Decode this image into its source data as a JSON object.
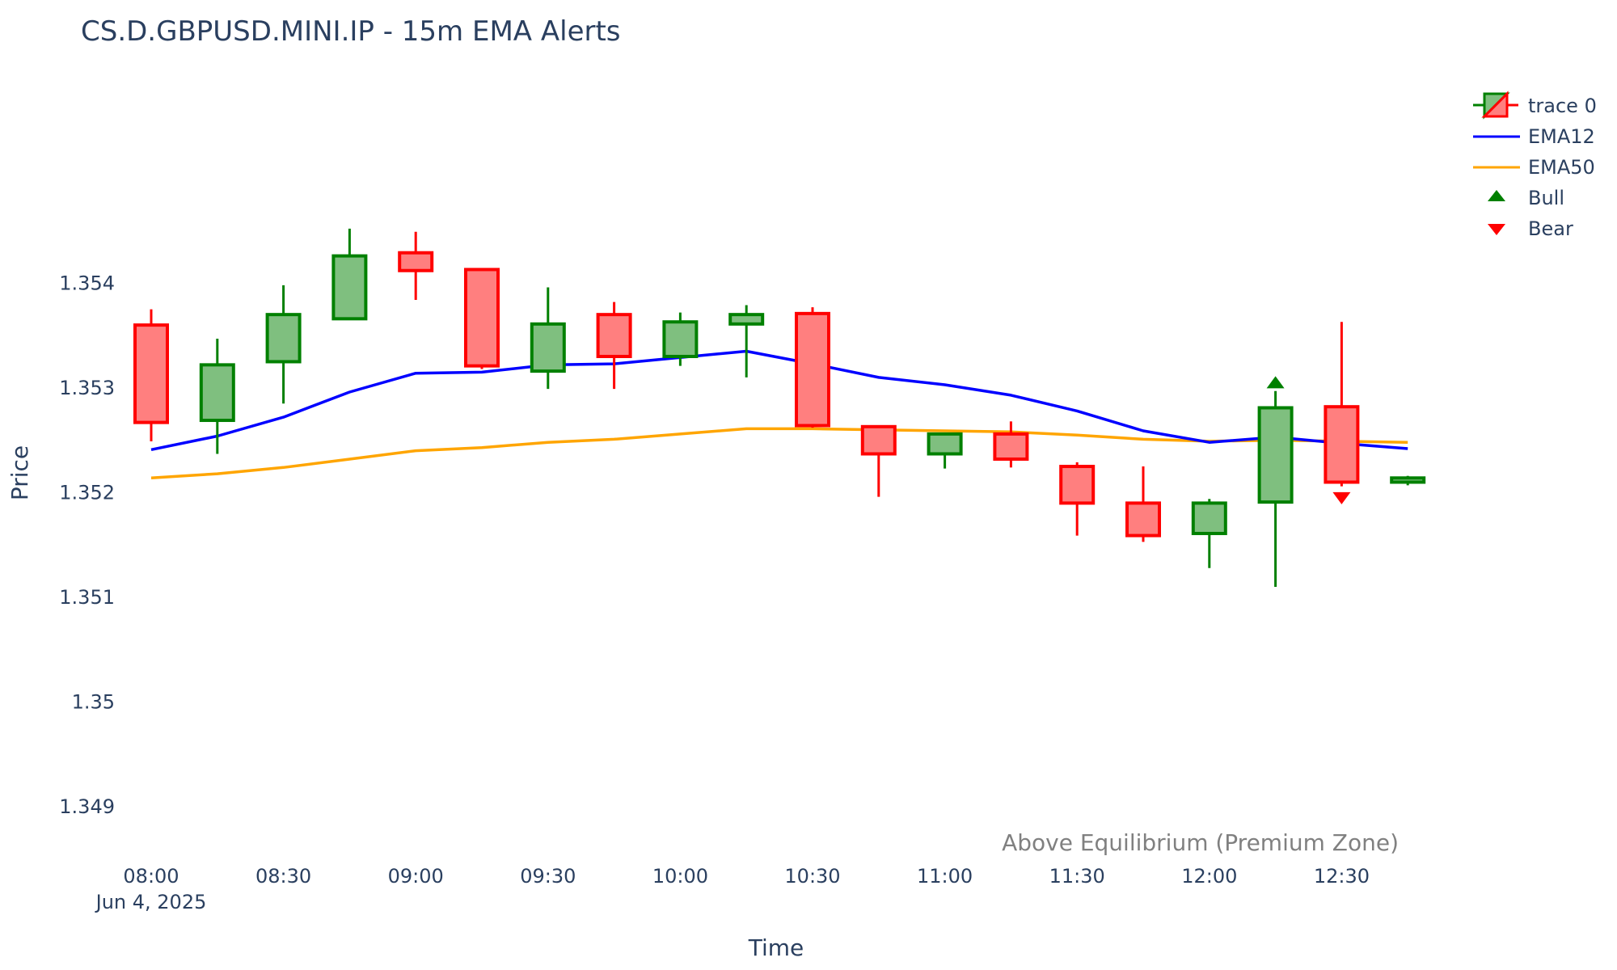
{
  "chart_data": {
    "type": "candlestick",
    "title": "CS.D.GBPUSD.MINI.IP - 15m EMA Alerts",
    "xlabel": "Time",
    "ylabel": "Price",
    "ylim": [
      1.3486,
      1.3557
    ],
    "yticks": [
      "1.349",
      "1.35",
      "1.351",
      "1.352",
      "1.353",
      "1.354"
    ],
    "xticks": [
      {
        "label": "08:00",
        "sub": "Jun 4, 2025",
        "index": 0
      },
      {
        "label": "08:30",
        "sub": "",
        "index": 2
      },
      {
        "label": "09:00",
        "sub": "",
        "index": 4
      },
      {
        "label": "09:30",
        "sub": "",
        "index": 6
      },
      {
        "label": "10:00",
        "sub": "",
        "index": 8
      },
      {
        "label": "10:30",
        "sub": "",
        "index": 10
      },
      {
        "label": "11:00",
        "sub": "",
        "index": 12
      },
      {
        "label": "11:30",
        "sub": "",
        "index": 14
      },
      {
        "label": "12:00",
        "sub": "",
        "index": 16
      },
      {
        "label": "12:30",
        "sub": "",
        "index": 18
      }
    ],
    "times": [
      "08:00",
      "08:15",
      "08:30",
      "08:45",
      "09:00",
      "09:15",
      "09:30",
      "09:45",
      "10:00",
      "10:15",
      "10:30",
      "10:45",
      "11:00",
      "11:15",
      "11:30",
      "11:45",
      "12:00",
      "12:15",
      "12:30",
      "12:45"
    ],
    "candles": [
      {
        "open": 1.3536,
        "high": 1.35375,
        "low": 1.35249,
        "close": 1.35267
      },
      {
        "open": 1.35269,
        "high": 1.35347,
        "low": 1.35237,
        "close": 1.35322
      },
      {
        "open": 1.35325,
        "high": 1.35398,
        "low": 1.35285,
        "close": 1.3537
      },
      {
        "open": 1.35366,
        "high": 1.35452,
        "low": 1.35365,
        "close": 1.35426
      },
      {
        "open": 1.35429,
        "high": 1.35449,
        "low": 1.35384,
        "close": 1.35412
      },
      {
        "open": 1.35413,
        "high": 1.35413,
        "low": 1.35318,
        "close": 1.35321
      },
      {
        "open": 1.35316,
        "high": 1.35396,
        "low": 1.35299,
        "close": 1.35361
      },
      {
        "open": 1.3537,
        "high": 1.35382,
        "low": 1.35299,
        "close": 1.3533
      },
      {
        "open": 1.3533,
        "high": 1.35372,
        "low": 1.35321,
        "close": 1.35363
      },
      {
        "open": 1.35361,
        "high": 1.35379,
        "low": 1.3531,
        "close": 1.3537
      },
      {
        "open": 1.35371,
        "high": 1.35377,
        "low": 1.35262,
        "close": 1.35264
      },
      {
        "open": 1.35263,
        "high": 1.35263,
        "low": 1.35196,
        "close": 1.35237
      },
      {
        "open": 1.35237,
        "high": 1.35256,
        "low": 1.35223,
        "close": 1.35256
      },
      {
        "open": 1.35256,
        "high": 1.35268,
        "low": 1.35224,
        "close": 1.35232
      },
      {
        "open": 1.35225,
        "high": 1.35229,
        "low": 1.35159,
        "close": 1.3519
      },
      {
        "open": 1.3519,
        "high": 1.35225,
        "low": 1.35153,
        "close": 1.35159
      },
      {
        "open": 1.35161,
        "high": 1.35194,
        "low": 1.35128,
        "close": 1.3519
      },
      {
        "open": 1.35191,
        "high": 1.35297,
        "low": 1.3511,
        "close": 1.35281
      },
      {
        "open": 1.35282,
        "high": 1.35363,
        "low": 1.35206,
        "close": 1.3521
      },
      {
        "open": 1.3521,
        "high": 1.35216,
        "low": 1.35207,
        "close": 1.35214
      }
    ],
    "series": [
      {
        "name": "trace 0",
        "increasing_color": "#008000",
        "increasing_fill": "#7fbf7f",
        "decreasing_color": "#ff0000",
        "decreasing_fill": "#ff7f7f"
      },
      {
        "name": "EMA12",
        "color": "#0000ff",
        "values": [
          1.35241,
          1.35254,
          1.35272,
          1.35296,
          1.35314,
          1.35315,
          1.35322,
          1.35323,
          1.35329,
          1.35335,
          1.35323,
          1.3531,
          1.35303,
          1.35293,
          1.35278,
          1.35259,
          1.35248,
          1.35253,
          1.35247,
          1.35242
        ]
      },
      {
        "name": "EMA50",
        "color": "#ffa500",
        "values": [
          1.35214,
          1.35218,
          1.35224,
          1.35232,
          1.3524,
          1.35243,
          1.35248,
          1.35251,
          1.35256,
          1.35261,
          1.35261,
          1.3526,
          1.35259,
          1.35258,
          1.35255,
          1.35251,
          1.35249,
          1.3525,
          1.35249,
          1.35248
        ]
      },
      {
        "name": "Bull",
        "color": "#008000",
        "marker": "triangle-up",
        "points": [
          {
            "index": 17,
            "y": 1.35305
          }
        ]
      },
      {
        "name": "Bear",
        "color": "#ff0000",
        "marker": "triangle-down",
        "points": [
          {
            "index": 18,
            "y": 1.35195
          }
        ]
      }
    ],
    "annotation": "Above Equilibrium (Premium Zone)",
    "legend_position": "top-right",
    "grid": false
  }
}
